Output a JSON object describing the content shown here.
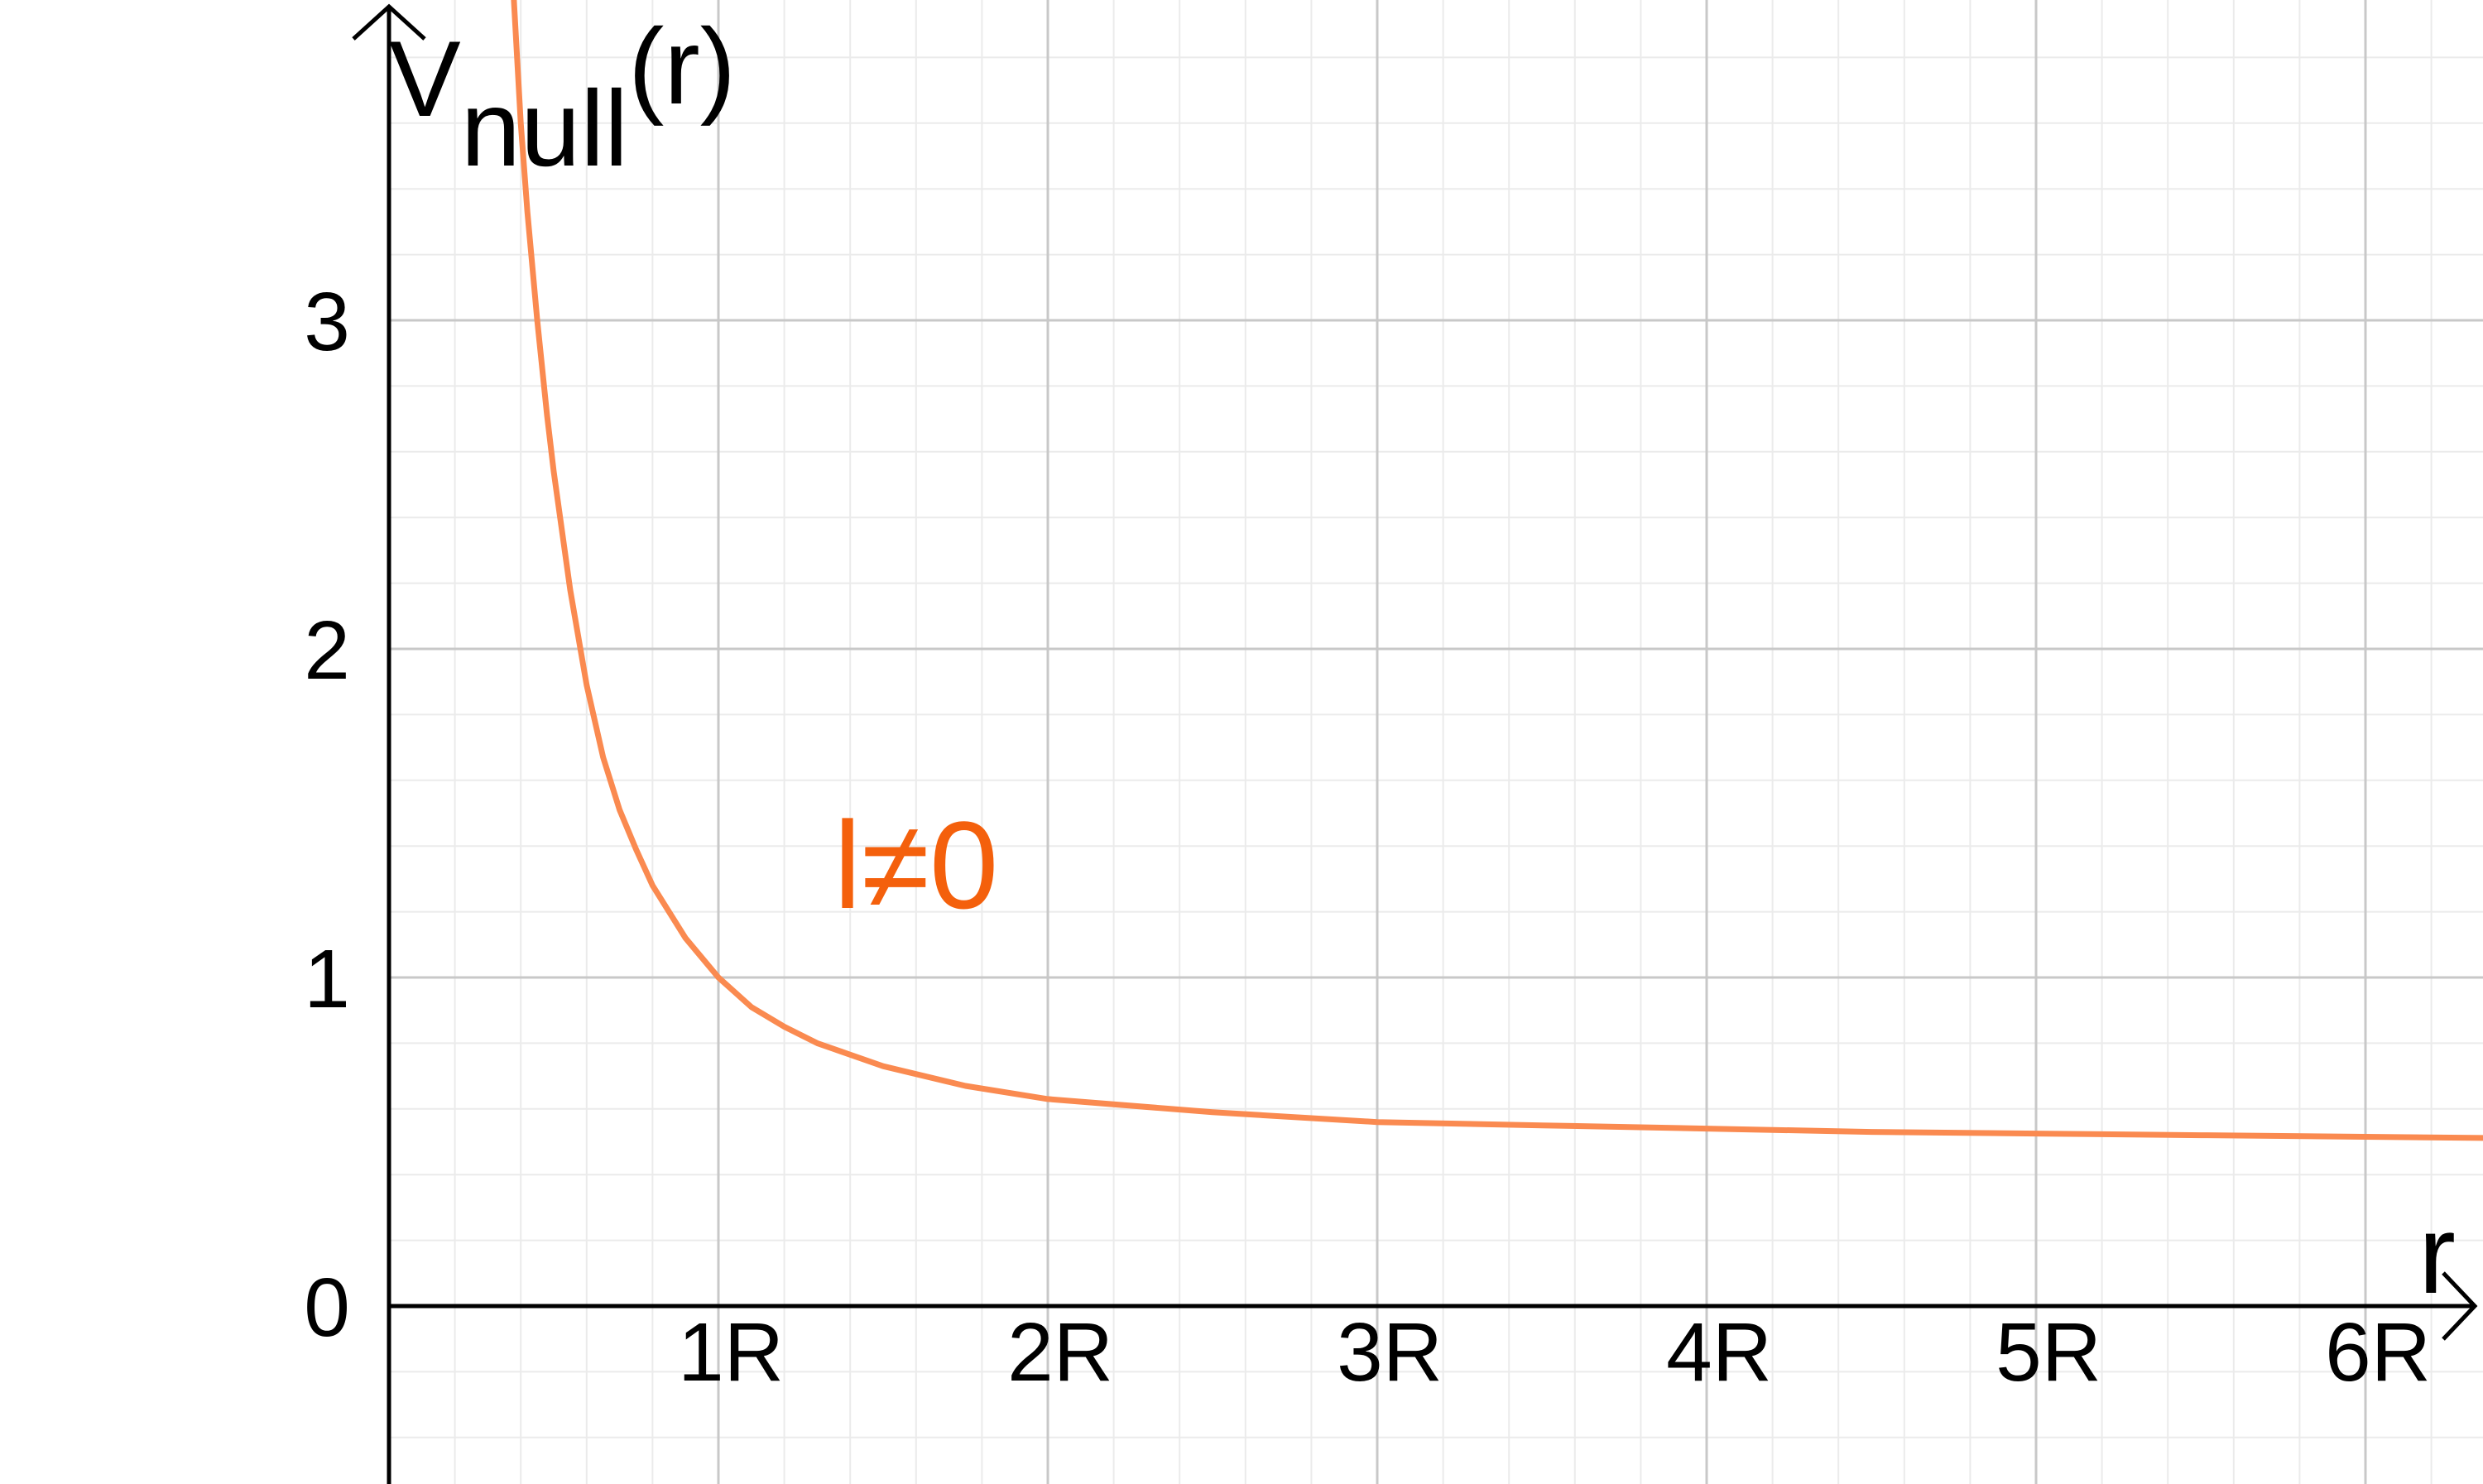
{
  "chart_data": {
    "type": "line",
    "ylabel": {
      "base": "V",
      "subscript": "null",
      "suffix": "(r)"
    },
    "xlabel": "r",
    "xlim": [
      0,
      6.5
    ],
    "ylim": [
      -0.55,
      3.97
    ],
    "x_ticks": [
      {
        "value": 1,
        "label": "1R"
      },
      {
        "value": 2,
        "label": "2R"
      },
      {
        "value": 3,
        "label": "3R"
      },
      {
        "value": 4,
        "label": "4R"
      },
      {
        "value": 5,
        "label": "5R"
      },
      {
        "value": 6,
        "label": "6R"
      }
    ],
    "y_ticks": [
      {
        "value": 0,
        "label": "0"
      },
      {
        "value": 1,
        "label": "1"
      },
      {
        "value": 2,
        "label": "2"
      },
      {
        "value": 3,
        "label": "3"
      }
    ],
    "grid": true,
    "series": [
      {
        "color": "#fa8a50",
        "x": [
          0.38,
          0.4,
          0.42,
          0.45,
          0.48,
          0.5,
          0.55,
          0.6,
          0.65,
          0.7,
          0.75,
          0.8,
          0.9,
          1.0,
          1.1,
          1.2,
          1.3,
          1.5,
          1.75,
          2.0,
          2.5,
          3.0,
          3.5,
          4.0,
          4.5,
          5.0,
          5.5,
          6.0,
          6.5
        ],
        "y": [
          3.96,
          3.6,
          3.33,
          3.0,
          2.71,
          2.54,
          2.18,
          1.89,
          1.67,
          1.51,
          1.39,
          1.28,
          1.12,
          1.0,
          0.91,
          0.85,
          0.8,
          0.73,
          0.67,
          0.63,
          0.59,
          0.56,
          0.55,
          0.54,
          0.53,
          0.525,
          0.52,
          0.515,
          0.51
        ]
      }
    ],
    "annotations": [
      {
        "text": "l≠0",
        "x": 1.35,
        "y": 1.35,
        "color": "#f4600c"
      }
    ]
  }
}
